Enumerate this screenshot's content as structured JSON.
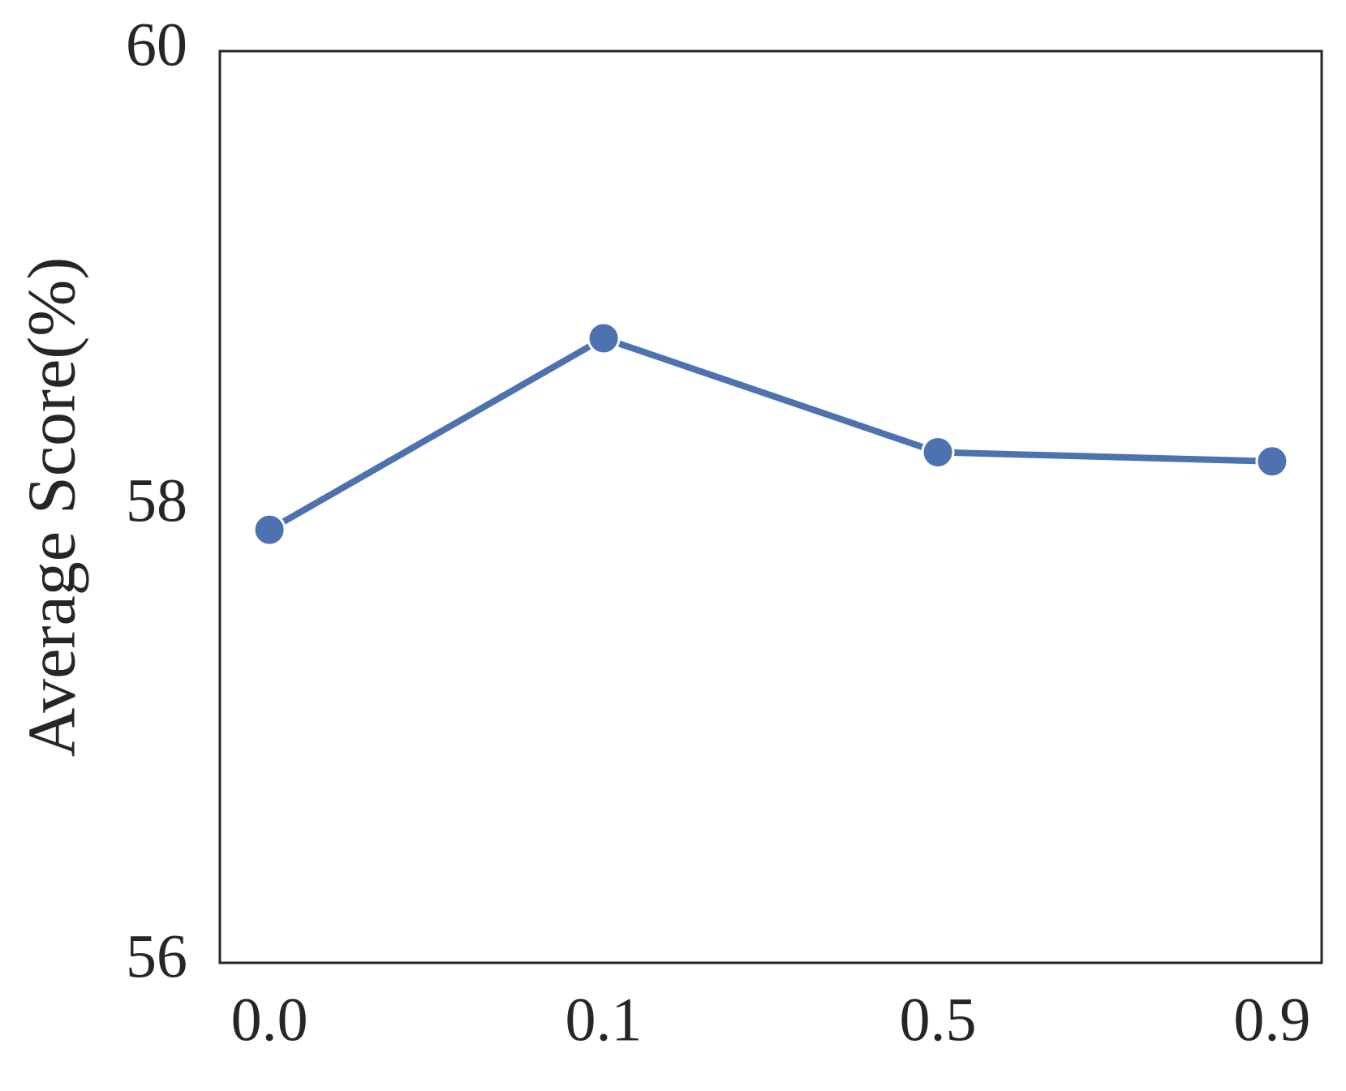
{
  "chart_data": {
    "type": "line",
    "y_label": "Average Score(%)",
    "categories": [
      "0.0",
      "0.1",
      "0.5",
      "0.9"
    ],
    "series": [
      {
        "color": "#4c72b0",
        "values": [
          57.9,
          58.74,
          58.24,
          58.2
        ]
      }
    ],
    "ylim": [
      56,
      60
    ],
    "yticks": [
      56,
      58,
      60
    ],
    "grid": false
  }
}
